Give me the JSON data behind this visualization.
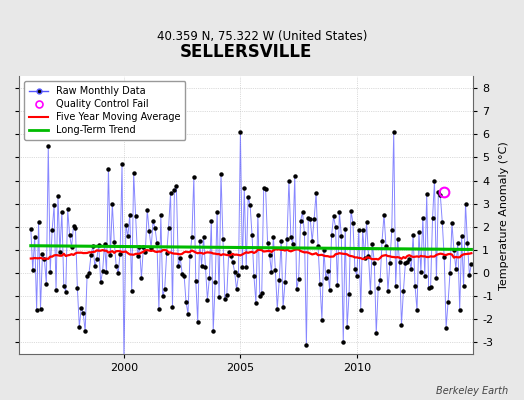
{
  "title": "SELLERSVILLE",
  "subtitle": "40.359 N, 75.322 W (United States)",
  "ylabel": "Temperature Anomaly (°C)",
  "credit": "Berkeley Earth",
  "ylim": [
    -3.5,
    8.5
  ],
  "yticks": [
    -3,
    -2,
    -1,
    0,
    1,
    2,
    3,
    4,
    5,
    6,
    7,
    8
  ],
  "xlim": [
    1995.5,
    2015.0
  ],
  "xticks": [
    2000,
    2005,
    2010
  ],
  "xticklabels": [
    "2000",
    "2005",
    "2010"
  ],
  "bg_color": "#e8e8e8",
  "plot_bg_color": "#ffffff",
  "raw_line_color": "#5555ff",
  "raw_marker_color": "#000000",
  "moving_avg_color": "#ff0000",
  "trend_color": "#00bb00",
  "qc_fail_color": "#ff00ff",
  "legend_loc": "upper left",
  "title_fontsize": 12,
  "subtitle_fontsize": 8.5,
  "tick_fontsize": 8,
  "ylabel_fontsize": 8,
  "legend_fontsize": 7,
  "credit_fontsize": 7
}
